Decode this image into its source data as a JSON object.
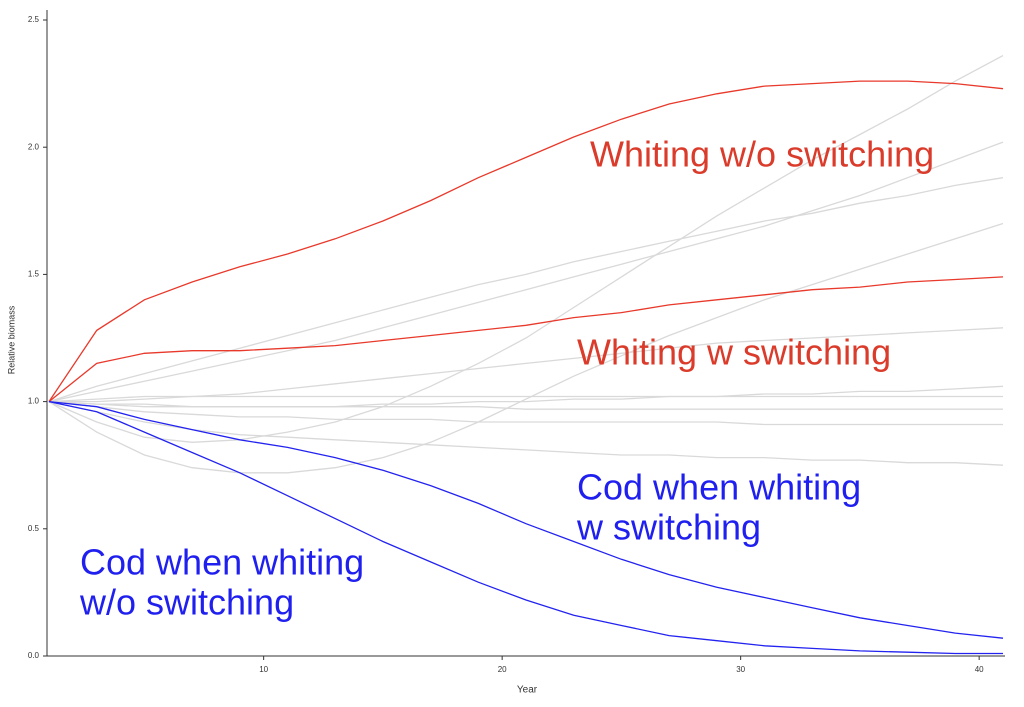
{
  "chart_data": {
    "type": "line",
    "xlabel": "Year",
    "ylabel": "Relative biomass",
    "xlim": [
      1,
      41
    ],
    "ylim": [
      0,
      2.5
    ],
    "xticks": [
      10,
      20,
      30,
      40
    ],
    "yticks": [
      {
        "value": 0,
        "label": "0.0"
      },
      0.5,
      {
        "value": 1,
        "label": "1.0"
      },
      1.5,
      {
        "value": 2,
        "label": "2.0"
      },
      2.5
    ],
    "x": [
      1,
      3,
      5,
      7,
      9,
      11,
      13,
      15,
      17,
      19,
      21,
      23,
      25,
      27,
      29,
      31,
      33,
      35,
      37,
      39,
      41
    ],
    "series": [
      {
        "color": "#d9d9d9",
        "values": [
          1.0,
          0.92,
          0.86,
          0.84,
          0.85,
          0.88,
          0.92,
          0.98,
          1.06,
          1.15,
          1.25,
          1.37,
          1.49,
          1.61,
          1.73,
          1.84,
          1.95,
          2.05,
          2.15,
          2.26,
          2.36
        ]
      },
      {
        "color": "#d9d9d9",
        "values": [
          1.0,
          1.04,
          1.08,
          1.12,
          1.16,
          1.2,
          1.24,
          1.29,
          1.34,
          1.39,
          1.44,
          1.49,
          1.54,
          1.59,
          1.64,
          1.69,
          1.75,
          1.81,
          1.88,
          1.95,
          2.02
        ]
      },
      {
        "color": "#d9d9d9",
        "values": [
          1.0,
          1.06,
          1.11,
          1.16,
          1.21,
          1.26,
          1.31,
          1.36,
          1.41,
          1.46,
          1.5,
          1.55,
          1.59,
          1.63,
          1.67,
          1.71,
          1.74,
          1.78,
          1.81,
          1.85,
          1.88
        ]
      },
      {
        "color": "#d9d9d9",
        "values": [
          1.0,
          1.0,
          1.01,
          1.02,
          1.03,
          1.05,
          1.07,
          1.09,
          1.11,
          1.13,
          1.15,
          1.17,
          1.19,
          1.21,
          1.23,
          1.24,
          1.25,
          1.26,
          1.27,
          1.28,
          1.29
        ]
      },
      {
        "color": "#d9d9d9",
        "values": [
          1.0,
          0.99,
          0.98,
          0.98,
          0.98,
          0.98,
          0.98,
          0.99,
          0.99,
          1.0,
          1.0,
          1.01,
          1.01,
          1.02,
          1.02,
          1.03,
          1.03,
          1.04,
          1.04,
          1.05,
          1.06
        ]
      },
      {
        "color": "#d9d9d9",
        "values": [
          1.0,
          1.01,
          1.02,
          1.02,
          1.02,
          1.02,
          1.02,
          1.02,
          1.02,
          1.02,
          1.02,
          1.02,
          1.02,
          1.02,
          1.02,
          1.02,
          1.02,
          1.02,
          1.02,
          1.02,
          1.02
        ]
      },
      {
        "color": "#d9d9d9",
        "values": [
          1.0,
          0.99,
          0.99,
          0.98,
          0.98,
          0.98,
          0.98,
          0.98,
          0.98,
          0.98,
          0.97,
          0.97,
          0.97,
          0.97,
          0.97,
          0.97,
          0.97,
          0.97,
          0.97,
          0.97,
          0.97
        ]
      },
      {
        "color": "#d9d9d9",
        "values": [
          1.0,
          0.98,
          0.96,
          0.95,
          0.94,
          0.94,
          0.93,
          0.93,
          0.93,
          0.92,
          0.92,
          0.92,
          0.92,
          0.92,
          0.92,
          0.91,
          0.91,
          0.91,
          0.91,
          0.91,
          0.91
        ]
      },
      {
        "color": "#d9d9d9",
        "values": [
          1.0,
          0.96,
          0.92,
          0.89,
          0.87,
          0.86,
          0.85,
          0.84,
          0.83,
          0.82,
          0.81,
          0.8,
          0.79,
          0.79,
          0.78,
          0.78,
          0.77,
          0.77,
          0.76,
          0.76,
          0.75
        ]
      },
      {
        "color": "#d9d9d9",
        "values": [
          1.0,
          0.88,
          0.79,
          0.74,
          0.72,
          0.72,
          0.74,
          0.78,
          0.84,
          0.92,
          1.01,
          1.1,
          1.18,
          1.26,
          1.33,
          1.4,
          1.46,
          1.52,
          1.58,
          1.64,
          1.7
        ]
      },
      {
        "color": "#e8392b",
        "values": [
          1.0,
          1.28,
          1.4,
          1.47,
          1.53,
          1.58,
          1.64,
          1.71,
          1.79,
          1.88,
          1.96,
          2.04,
          2.11,
          2.17,
          2.21,
          2.24,
          2.25,
          2.26,
          2.26,
          2.25,
          2.23
        ]
      },
      {
        "color": "#e8392b",
        "values": [
          1.0,
          1.15,
          1.19,
          1.2,
          1.2,
          1.21,
          1.22,
          1.24,
          1.26,
          1.28,
          1.3,
          1.33,
          1.35,
          1.38,
          1.4,
          1.42,
          1.44,
          1.45,
          1.47,
          1.48,
          1.49
        ]
      },
      {
        "color": "#2323f0",
        "values": [
          1.0,
          0.98,
          0.93,
          0.89,
          0.85,
          0.82,
          0.78,
          0.73,
          0.67,
          0.6,
          0.52,
          0.45,
          0.38,
          0.32,
          0.27,
          0.23,
          0.19,
          0.15,
          0.12,
          0.09,
          0.07
        ]
      },
      {
        "color": "#2323f0",
        "values": [
          1.0,
          0.96,
          0.88,
          0.8,
          0.72,
          0.63,
          0.54,
          0.45,
          0.37,
          0.29,
          0.22,
          0.16,
          0.12,
          0.08,
          0.06,
          0.04,
          0.03,
          0.02,
          0.015,
          0.01,
          0.01
        ]
      }
    ],
    "annotations": [
      {
        "lines": [
          "Whiting w/o switching"
        ],
        "color": "#db3b2a"
      },
      {
        "lines": [
          "Whiting w switching"
        ],
        "color": "#db3b2a"
      },
      {
        "lines": [
          "Cod when whiting",
          "w switching"
        ],
        "color": "#1f1ff0"
      },
      {
        "lines": [
          "Cod when whiting",
          "w/o switching"
        ],
        "color": "#1f1ff0"
      }
    ]
  }
}
